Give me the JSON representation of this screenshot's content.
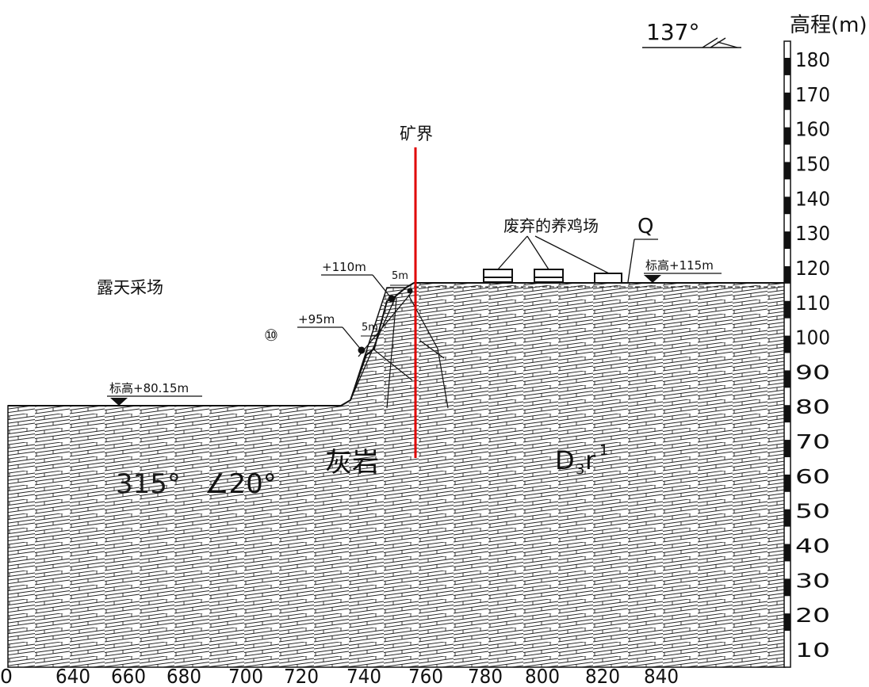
{
  "orientation": {
    "azimuth": "137°"
  },
  "elevation_axis": {
    "label": "高程(m)",
    "ticks": [
      180,
      170,
      160,
      150,
      140,
      130,
      120,
      110,
      100,
      90,
      80,
      70,
      60,
      50,
      40,
      30,
      20,
      10
    ]
  },
  "distance_axis": {
    "ticks": [
      "0",
      "640",
      "660",
      "680",
      "700",
      "720",
      "740",
      "760",
      "780",
      "800",
      "820",
      "840"
    ]
  },
  "labels": {
    "mine_boundary": "矿界",
    "open_pit": "露天采场",
    "abandoned_farm": "废弃的养鸡场",
    "quaternary": "Q",
    "rock_type": "灰岩",
    "attitude_dir": "315°",
    "attitude_angle": "∠20°",
    "stratum_main": "D",
    "stratum_sub": "3",
    "stratum_letter": "r",
    "stratum_sup": "1",
    "slope_no": "⑩"
  },
  "annotations": {
    "pit_floor": "标高+80.15m",
    "surface": "标高+115m",
    "bench_upper": "+110m",
    "bench_lower": "+95m",
    "berm_upper": "5m",
    "berm_lower": "5m"
  },
  "colors": {
    "ink": "#111111",
    "boundary": "#e00000",
    "background": "#ffffff"
  },
  "icons": [
    "triangle-marker-icon",
    "triangle-marker-icon",
    "building-icon",
    "building-icon",
    "building-icon"
  ]
}
